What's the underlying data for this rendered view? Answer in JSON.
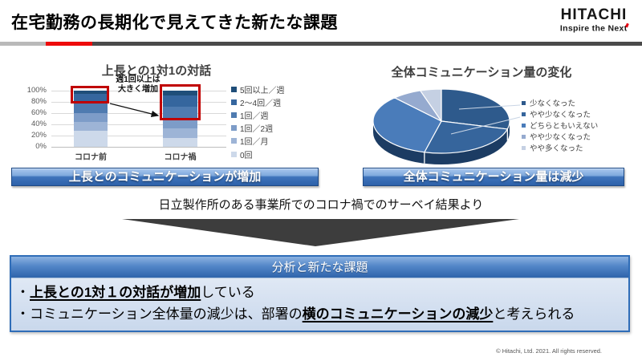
{
  "header": {
    "title": "在宅勤務の長期化で見えてきた新たな課題",
    "logo_text": "HITACHI",
    "logo_tagline": "Inspire the Next"
  },
  "chart_data": [
    {
      "type": "bar",
      "subtype": "stacked-100-percent",
      "title": "上長との1対1の対話",
      "categories": [
        "コロナ前",
        "コロナ禍"
      ],
      "series": [
        {
          "name": "5回以上／週",
          "values": [
            6,
            8
          ],
          "color": "#1f4e79"
        },
        {
          "name": "2～4回／週",
          "values": [
            16,
            20
          ],
          "color": "#35669e"
        },
        {
          "name": "1回／週",
          "values": [
            18,
            22
          ],
          "color": "#4f7bb0"
        },
        {
          "name": "1回／2週",
          "values": [
            16,
            17
          ],
          "color": "#7d9cc8"
        },
        {
          "name": "1回／月",
          "values": [
            16,
            17
          ],
          "color": "#9db4d6"
        },
        {
          "name": "0回",
          "values": [
            28,
            16
          ],
          "color": "#cdd9ea"
        }
      ],
      "y_ticks": [
        "100%",
        "80%",
        "60%",
        "40%",
        "20%",
        "0%"
      ],
      "ylim": [
        0,
        100
      ],
      "grid": true,
      "legend_position": "right",
      "annotation": "週1回以上は\n大きく増加",
      "highlight": "red boxes around top segments of both bars with arrow from コロナ前 to コロナ禍"
    },
    {
      "type": "pie",
      "subtype": "3d",
      "title": "全体コミュニケーション量の変化",
      "labels": [
        "少なくなった",
        "やや少なくなった",
        "どちらともいえない",
        "やや少なくなった",
        "やや多くなった"
      ],
      "values": [
        29,
        25,
        34,
        7,
        5
      ],
      "colors": [
        "#2e5a8c",
        "#36659c",
        "#4a7cba",
        "#95aacf",
        "#c5d0e3"
      ],
      "side_color": "#1c3c63",
      "legend_position": "right"
    }
  ],
  "banners": {
    "bar": "上長とのコミュニケーションが増加",
    "pie": "全体コミュニケーション量は減少"
  },
  "survey_note": "日立製作所のある事業所でのコロナ禍でのサーベイ結果より",
  "analysis": {
    "header": "分析と新たな課題",
    "bullets": [
      {
        "pre": "・",
        "emphasis": "上長との1対１の対話が増加",
        "post": "している"
      },
      {
        "pre": "・コミュニケーション全体量の減少は、部署の",
        "emphasis": "横のコミュニケーションの減少",
        "post": "と考えられる"
      }
    ]
  },
  "footer": "© Hitachi, Ltd. 2021. All rights reserved.",
  "accent_colors": {
    "logo_red": "#e60012",
    "highlight_red": "#c00000",
    "banner_blue": "#3f74bc",
    "divider_red": "#ee0b0b"
  }
}
